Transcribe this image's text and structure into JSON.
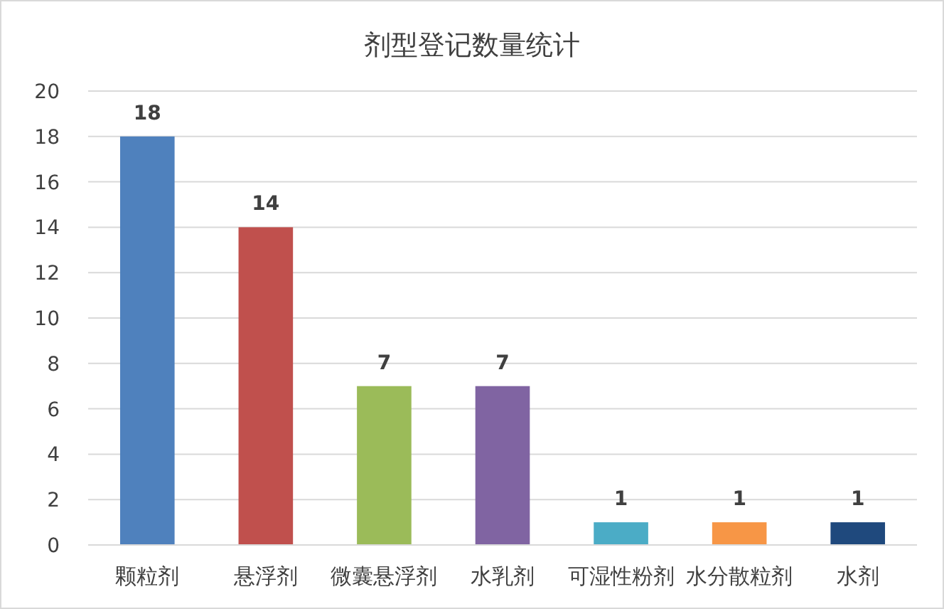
{
  "chart_data": {
    "type": "bar",
    "title": "剂型登记数量统计",
    "categories": [
      "颗粒剂",
      "悬浮剂",
      "微囊悬浮剂",
      "水乳剂",
      "可湿性粉剂",
      "水分散粒剂",
      "水剂"
    ],
    "values": [
      18,
      14,
      7,
      7,
      1,
      1,
      1
    ],
    "colors": [
      "#4f81bd",
      "#c0504d",
      "#9bbb59",
      "#8064a2",
      "#4bacc6",
      "#f79646",
      "#1f497d"
    ],
    "ylim": [
      0,
      20
    ],
    "yticks": [
      0,
      2,
      4,
      6,
      8,
      10,
      12,
      14,
      16,
      18,
      20
    ],
    "grid": "y",
    "data_labels": true
  }
}
